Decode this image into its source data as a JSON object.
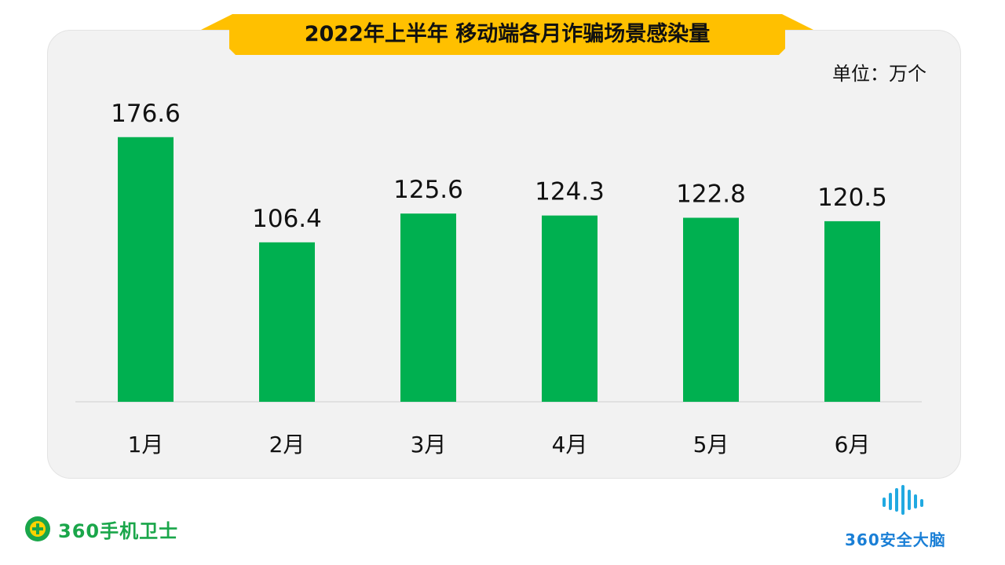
{
  "header": {
    "title": "2022年上半年 移动端各月诈骗场景感染量"
  },
  "unit": "单位：万个",
  "colors": {
    "bar": "#00b050",
    "banner": "#ffc000",
    "axis": "#d9d9d9"
  },
  "chart_data": {
    "type": "bar",
    "title": "2022年上半年 移动端各月诈骗场景感染量",
    "categories": [
      "1月",
      "2月",
      "3月",
      "4月",
      "5月",
      "6月"
    ],
    "values": [
      176.6,
      106.4,
      125.6,
      124.3,
      122.8,
      120.5
    ],
    "value_labels": [
      "176.6",
      "106.4",
      "125.6",
      "124.3",
      "122.8",
      "120.5"
    ],
    "ylabel": "",
    "xlabel": "",
    "ylim": [
      0,
      177
    ],
    "grid": false,
    "legend": "none"
  },
  "footer": {
    "left_logo": {
      "icon": "shield-plus-icon",
      "text": "360手机卫士"
    },
    "right_logo": {
      "icon": "waveform-icon",
      "text": "360安全大脑"
    }
  }
}
